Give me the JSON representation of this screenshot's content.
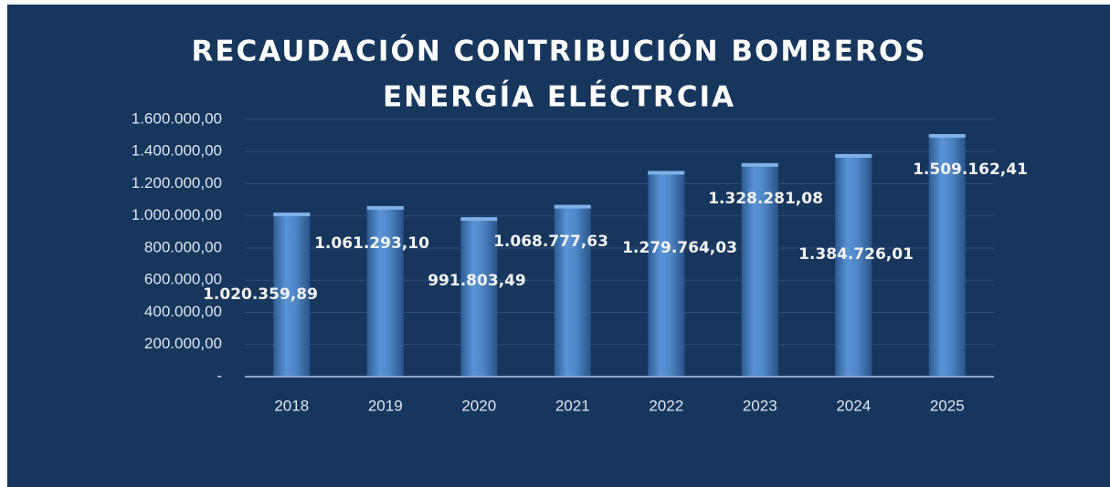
{
  "chart_data": {
    "type": "bar",
    "title": [
      "RECAUDACIÓN CONTRIBUCIÓN BOMBEROS",
      "ENERGÍA ELÉCTRCIA"
    ],
    "categories": [
      "2018",
      "2019",
      "2020",
      "2021",
      "2022",
      "2023",
      "2024",
      "2025"
    ],
    "values": [
      1020359.89,
      1061293.1,
      991803.49,
      1068777.63,
      1279764.03,
      1328281.08,
      1384726.01,
      1509162.41
    ],
    "value_labels": [
      "1.020.359,89",
      "1.061.293,10",
      "991.803,49",
      "1.068.777,63",
      "1.279.764,03",
      "1.328.281,08",
      "1.384.726,01",
      "1.509.162,41"
    ],
    "color": "#4f86c6",
    "ylim": [
      0,
      1600000
    ],
    "yticks": [
      {
        "value": 0,
        "label": "-"
      },
      {
        "value": 200000,
        "label": "200.000,00"
      },
      {
        "value": 400000,
        "label": "400.000,00"
      },
      {
        "value": 600000,
        "label": "600.000,00"
      },
      {
        "value": 800000,
        "label": "800.000,00"
      },
      {
        "value": 1000000,
        "label": "1.000.000,00"
      },
      {
        "value": 1200000,
        "label": "1.200.000,00"
      },
      {
        "value": 1400000,
        "label": "1.400.000,00"
      },
      {
        "value": 1600000,
        "label": "1.600.000,00"
      }
    ],
    "grid": true
  }
}
